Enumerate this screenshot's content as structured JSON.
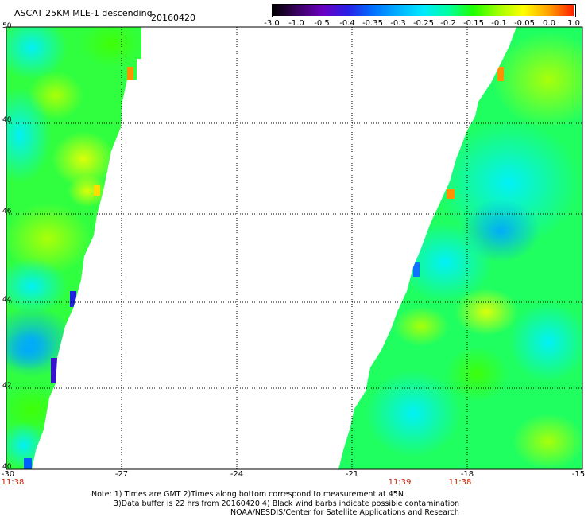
{
  "header": {
    "title": "ASCAT 25KM MLE-1 descending",
    "date": "20160420"
  },
  "colorbar": {
    "labels": [
      "-3.0",
      "-1.0",
      "-0.5",
      "-0.4",
      "-0.35",
      "-0.3",
      "-0.25",
      "-0.2",
      "-0.15",
      "-0.1",
      "-0.05",
      "0.0",
      "1.0"
    ],
    "colors": [
      "#000000",
      "#3b0060",
      "#6a00c0",
      "#2a1ee6",
      "#0070ff",
      "#00b0ff",
      "#00eaff",
      "#00ffa0",
      "#20ff00",
      "#a0ff00",
      "#ffff00",
      "#ffa000",
      "#ff2000"
    ]
  },
  "map": {
    "lat_labels": [
      "50",
      "48",
      "46",
      "44",
      "42",
      "40"
    ],
    "lon_labels": [
      "-30",
      "-27",
      "-24",
      "-21",
      "-18",
      "-15"
    ],
    "time_labels": [
      "11:38",
      "11:39",
      "11:38"
    ]
  },
  "footer": {
    "note1": "Note: 1) Times are GMT 2)Times along bottom correspond to measurement at 45N",
    "note2": "3)Data buffer is 22 hrs from 20160420 4) Black wind barbs indicate possible contamination",
    "credit": "NOAA/NESDIS/Center for Satellite Applications and Research"
  }
}
